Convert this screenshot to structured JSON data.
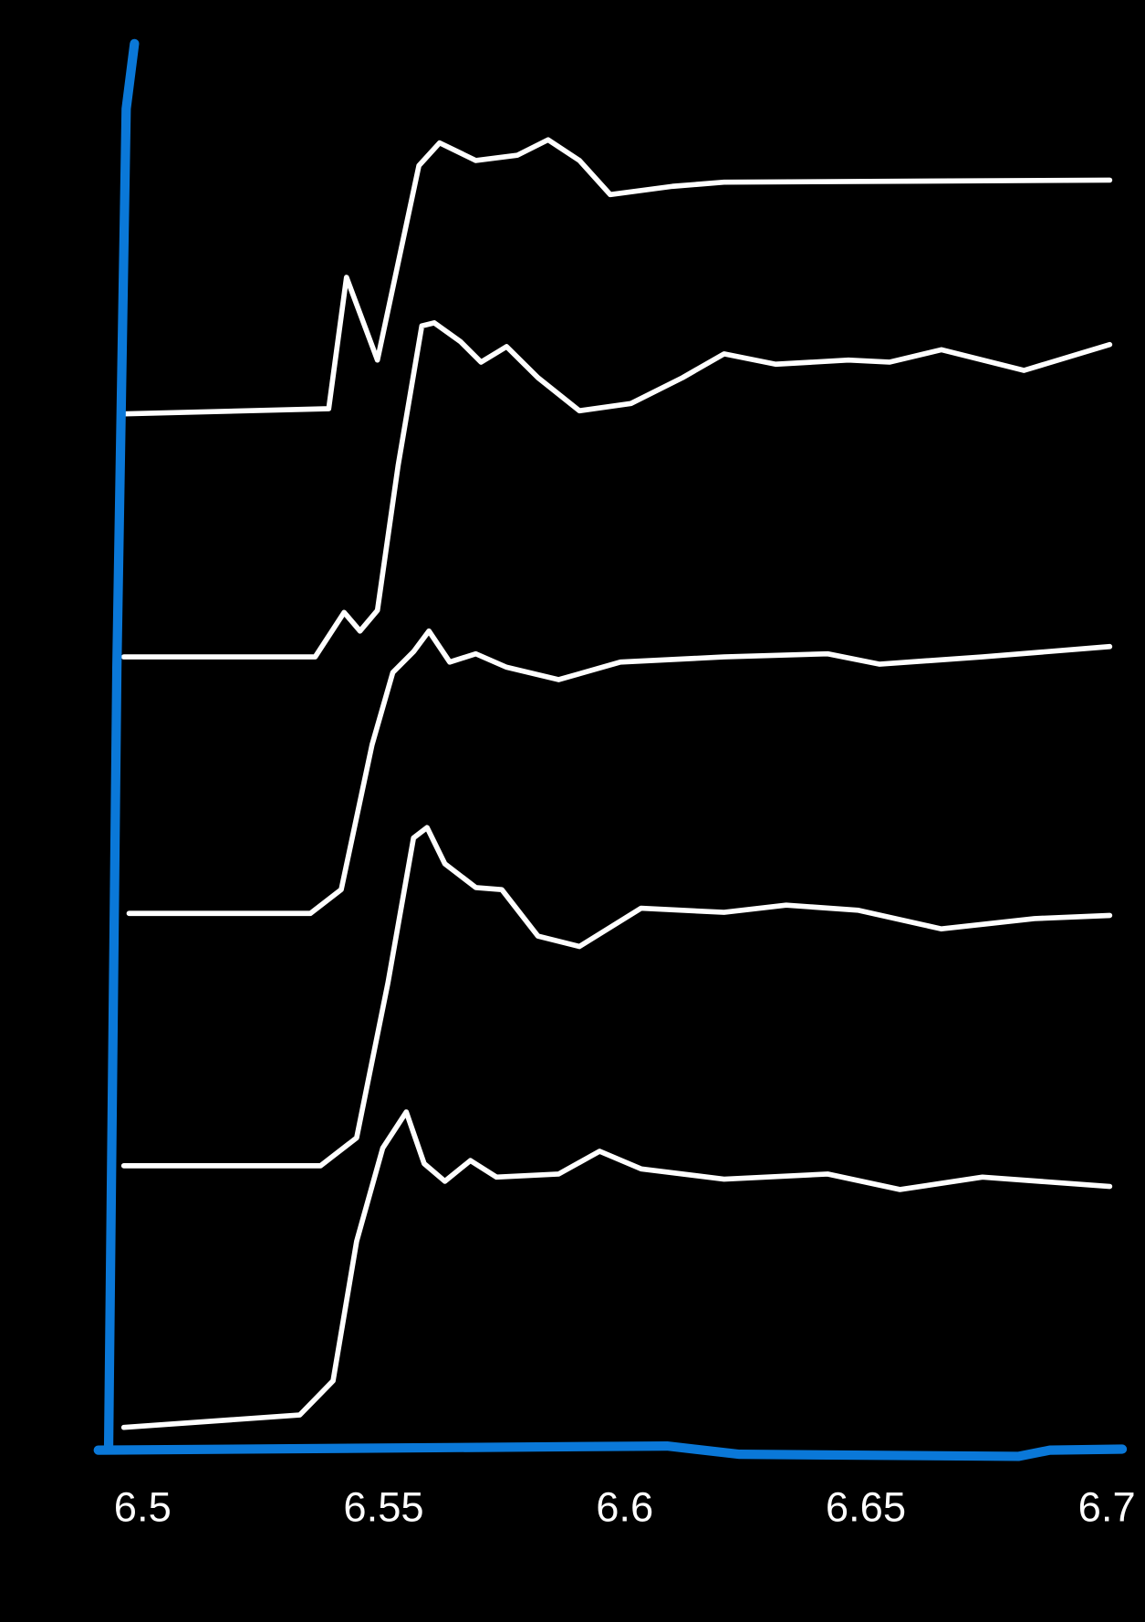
{
  "chart_data": {
    "type": "line",
    "xlim": [
      6.4908,
      6.7032
    ],
    "xticks": [
      6.5,
      6.55,
      6.6,
      6.65,
      6.7
    ],
    "ylim": [
      0,
      13.55
    ],
    "axis_color": "#0a78d8",
    "series": [
      {
        "color": "#ffffff",
        "x": [
          6.4961,
          6.5386,
          6.5423,
          6.5487,
          6.5573,
          6.5616,
          6.5691,
          6.5777,
          6.5841,
          6.5906,
          6.597,
          6.6099,
          6.6206,
          6.7006
        ],
        "values": [
          10.0,
          10.05,
          11.32,
          10.52,
          12.4,
          12.62,
          12.45,
          12.5,
          12.65,
          12.45,
          12.12,
          12.2,
          12.24,
          12.26
        ]
      },
      {
        "color": "#ffffff",
        "x": [
          6.4961,
          6.5358,
          6.5418,
          6.5451,
          6.5487,
          6.553,
          6.5579,
          6.5605,
          6.5659,
          6.5702,
          6.5755,
          6.582,
          6.5906,
          6.6013,
          6.612,
          6.6206,
          6.6313,
          6.6464,
          6.6549,
          6.6657,
          6.6828,
          6.7006
        ],
        "values": [
          7.65,
          7.65,
          8.08,
          7.9,
          8.1,
          9.5,
          10.85,
          10.88,
          10.7,
          10.5,
          10.65,
          10.35,
          10.03,
          10.1,
          10.35,
          10.58,
          10.48,
          10.52,
          10.5,
          10.62,
          10.42,
          10.67
        ]
      },
      {
        "color": "#ffffff",
        "x": [
          6.4972,
          6.5348,
          6.5412,
          6.5476,
          6.5519,
          6.5562,
          6.5594,
          6.5637,
          6.5691,
          6.5755,
          6.5863,
          6.5991,
          6.6206,
          6.6421,
          6.6528,
          6.6742,
          6.7006
        ],
        "values": [
          5.17,
          5.17,
          5.4,
          6.8,
          7.5,
          7.7,
          7.9,
          7.6,
          7.68,
          7.55,
          7.43,
          7.6,
          7.65,
          7.68,
          7.58,
          7.65,
          7.75
        ]
      },
      {
        "color": "#ffffff",
        "x": [
          6.4961,
          6.5369,
          6.5444,
          6.5509,
          6.5562,
          6.559,
          6.5627,
          6.5691,
          6.5745,
          6.582,
          6.5906,
          6.6034,
          6.6206,
          6.6335,
          6.6485,
          6.6657,
          6.685,
          6.7006
        ],
        "values": [
          2.73,
          2.73,
          3.0,
          4.5,
          5.9,
          6.0,
          5.65,
          5.42,
          5.4,
          4.95,
          4.85,
          5.22,
          5.18,
          5.25,
          5.2,
          5.02,
          5.12,
          5.15
        ]
      },
      {
        "color": "#ffffff",
        "x": [
          6.4961,
          6.5326,
          6.5395,
          6.5444,
          6.5498,
          6.5547,
          6.5584,
          6.5627,
          6.568,
          6.5734,
          6.5863,
          6.5948,
          6.6034,
          6.6206,
          6.6421,
          6.6571,
          6.6742,
          6.7006
        ],
        "values": [
          0.2,
          0.32,
          0.65,
          2.0,
          2.9,
          3.25,
          2.75,
          2.58,
          2.78,
          2.62,
          2.65,
          2.87,
          2.7,
          2.6,
          2.65,
          2.5,
          2.62,
          2.53
        ]
      }
    ]
  }
}
